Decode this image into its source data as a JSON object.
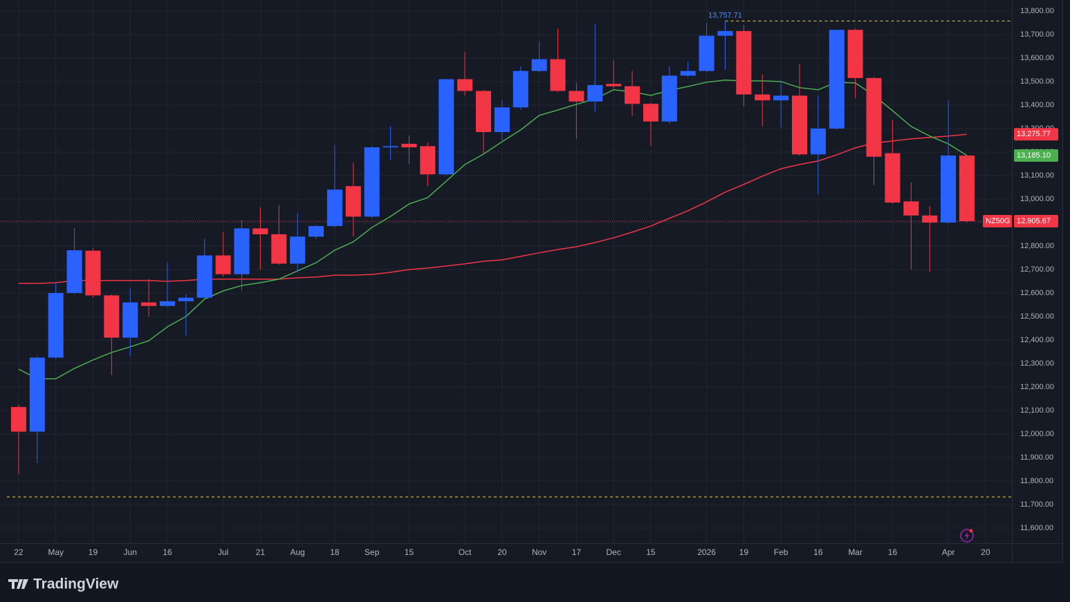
{
  "chart_data": {
    "type": "candlestick",
    "ylim": [
      11538,
      13847
    ],
    "xlim": [
      -0.63,
      53.42
    ],
    "yticks": [
      {
        "value": 11600,
        "label": "11,600.00"
      },
      {
        "value": 11700,
        "label": "11,700.00"
      },
      {
        "value": 11800,
        "label": "11,800.00"
      },
      {
        "value": 11900,
        "label": "11,900.00"
      },
      {
        "value": 12000,
        "label": "12,000.00"
      },
      {
        "value": 12100,
        "label": "12,100.00"
      },
      {
        "value": 12200,
        "label": "12,200.00"
      },
      {
        "value": 12300,
        "label": "12,300.00"
      },
      {
        "value": 12400,
        "label": "12,400.00"
      },
      {
        "value": 12500,
        "label": "12,500.00"
      },
      {
        "value": 12600,
        "label": "12,600.00"
      },
      {
        "value": 12700,
        "label": "12,700.00"
      },
      {
        "value": 12800,
        "label": "12,800.00"
      },
      {
        "value": 12900,
        "label": "12,900.00"
      },
      {
        "value": 13000,
        "label": "13,000.00"
      },
      {
        "value": 13100,
        "label": "13,100.00"
      },
      {
        "value": 13200,
        "label": "13,200.00"
      },
      {
        "value": 13300,
        "label": "13,300.00"
      },
      {
        "value": 13400,
        "label": "13,400.00"
      },
      {
        "value": 13500,
        "label": "13,500.00"
      },
      {
        "value": 13600,
        "label": "13,600.00"
      },
      {
        "value": 13700,
        "label": "13,700.00"
      },
      {
        "value": 13800,
        "label": "13,800.00"
      }
    ],
    "xticks": [
      {
        "value": 0,
        "label": "22"
      },
      {
        "value": 2,
        "label": "May"
      },
      {
        "value": 4,
        "label": "19"
      },
      {
        "value": 6,
        "label": "Jun"
      },
      {
        "value": 8,
        "label": "16"
      },
      {
        "value": 11,
        "label": "Jul"
      },
      {
        "value": 13,
        "label": "21"
      },
      {
        "value": 15,
        "label": "Aug"
      },
      {
        "value": 17,
        "label": "18"
      },
      {
        "value": 19,
        "label": "Sep"
      },
      {
        "value": 21,
        "label": "15"
      },
      {
        "value": 24,
        "label": "Oct"
      },
      {
        "value": 26,
        "label": "20"
      },
      {
        "value": 28,
        "label": "Nov"
      },
      {
        "value": 30,
        "label": "17"
      },
      {
        "value": 32,
        "label": "Dec"
      },
      {
        "value": 34,
        "label": "15"
      },
      {
        "value": 37,
        "label": "2026"
      },
      {
        "value": 39,
        "label": "19"
      },
      {
        "value": 41,
        "label": "Feb"
      },
      {
        "value": 43,
        "label": "16"
      },
      {
        "value": 45,
        "label": "Mar"
      },
      {
        "value": 47,
        "label": "16"
      },
      {
        "value": 50,
        "label": "Apr"
      },
      {
        "value": 52,
        "label": "20"
      }
    ],
    "grid": true,
    "up_color": "#2962ff",
    "down_color": "#f23645",
    "open": [
      12115,
      12010,
      12325,
      12600,
      12780,
      12590,
      12410,
      12560,
      12545,
      12565,
      12580,
      12760,
      12680,
      12875,
      12850,
      12725,
      12840,
      12885,
      13055,
      12925,
      13220,
      13235,
      13225,
      13105,
      13510,
      13460,
      13285,
      13390,
      13545,
      13595,
      13460,
      13415,
      13490,
      13480,
      13405,
      13330,
      13525,
      13545,
      13695,
      13715,
      13445,
      13420,
      13440,
      13190,
      13300,
      13720,
      13515,
      13195,
      12990,
      12930,
      12900,
      13185
    ],
    "high": [
      12125,
      12330,
      12645,
      12876,
      12790,
      12595,
      12620,
      12660,
      12730,
      12595,
      12830,
      12860,
      12910,
      12965,
      12975,
      12940,
      12890,
      13230,
      13155,
      13225,
      13310,
      13270,
      13240,
      13510,
      13625,
      13465,
      13420,
      13565,
      13670,
      13725,
      13495,
      13745,
      13590,
      13545,
      13410,
      13565,
      13585,
      13750,
      13757.71,
      13740,
      13530,
      13505,
      13575,
      13440,
      13720,
      13725,
      13520,
      13335,
      13070,
      12970,
      13420,
      13185
    ],
    "low": [
      11830,
      11876,
      12320,
      12595,
      12580,
      12250,
      12330,
      12500,
      12540,
      12420,
      12570,
      12670,
      12610,
      12700,
      12720,
      12690,
      12830,
      12880,
      12840,
      12920,
      13165,
      13150,
      13055,
      13100,
      13440,
      13190,
      13250,
      13380,
      13540,
      13455,
      13255,
      13370,
      13470,
      13355,
      13225,
      13320,
      13520,
      13540,
      13550,
      13395,
      13310,
      13305,
      13185,
      13020,
      13295,
      13430,
      13060,
      12980,
      12700,
      12690,
      12895,
      12900
    ],
    "close": [
      12010,
      12325,
      12600,
      12782,
      12590,
      12410,
      12560,
      12545,
      12565,
      12580,
      12760,
      12680,
      12875,
      12850,
      12725,
      12840,
      12885,
      13040,
      12925,
      13220,
      13225,
      13220,
      13105,
      13510,
      13460,
      13285,
      13390,
      13545,
      13595,
      13460,
      13415,
      13485,
      13480,
      13405,
      13330,
      13525,
      13545,
      13695,
      13715,
      13445,
      13420,
      13440,
      13190,
      13300,
      13720,
      13515,
      13180,
      12985,
      12930,
      12900,
      13185,
      12905.67
    ],
    "overlays": [
      {
        "color": "#f23645",
        "last_label": "13,275.77",
        "values": [
          12641,
          12641,
          12644,
          12653,
          12653,
          12653,
          12653,
          12653,
          12650,
          12653,
          12659,
          12659,
          12659,
          12659,
          12659,
          12665,
          12668,
          12676,
          12676,
          12679,
          12688,
          12700,
          12706,
          12715,
          12724,
          12735,
          12741,
          12756,
          12771,
          12785,
          12797,
          12815,
          12835,
          12859,
          12885,
          12918,
          12950,
          12988,
          13029,
          13062,
          13097,
          13129,
          13147,
          13162,
          13188,
          13218,
          13238,
          13247,
          13256,
          13262,
          13268,
          13275.77
        ]
      },
      {
        "color": "#4caf50",
        "last_label": "13,185.10",
        "values": [
          12276,
          12235,
          12235,
          12279,
          12315,
          12347,
          12371,
          12397,
          12456,
          12500,
          12574,
          12609,
          12632,
          12644,
          12659,
          12694,
          12729,
          12782,
          12818,
          12879,
          12926,
          12979,
          13006,
          13076,
          13147,
          13191,
          13244,
          13294,
          13356,
          13379,
          13403,
          13426,
          13465,
          13456,
          13441,
          13462,
          13479,
          13497,
          13506,
          13503,
          13503,
          13500,
          13474,
          13465,
          13497,
          13494,
          13441,
          13376,
          13309,
          13268,
          13235,
          13185.1
        ]
      }
    ],
    "price_line": {
      "value": 12905.67,
      "label": "12,905.67",
      "symbol": "NZ50G",
      "color": "#f23645"
    },
    "high_marker": {
      "value": 13757.71,
      "label": "13,757.71",
      "x": 38,
      "color": "#f7d038"
    },
    "low_level": {
      "value": 11732,
      "color": "#f7d038"
    },
    "brand": "TradingView"
  }
}
